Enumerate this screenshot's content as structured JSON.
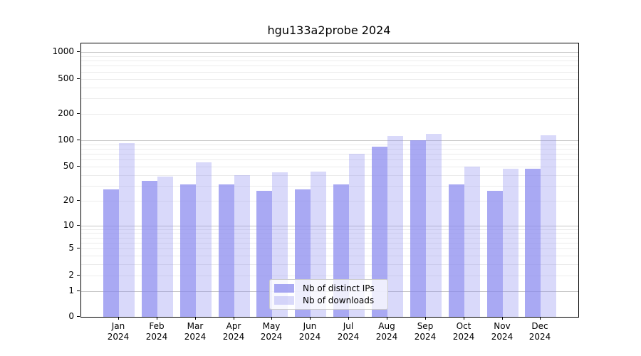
{
  "title": "hgu133a2probe 2024",
  "colors": {
    "bar_base": "#8888ee",
    "ips_fill": "rgba(136,136,238,0.72)",
    "downloads_fill": "rgba(136,136,238,0.32)",
    "grid_major": "#c6c6c6",
    "grid_minor": "#ececec",
    "axis": "#000000",
    "legend_border": "#cccccc",
    "legend_bg": "rgba(255,255,255,0.8)",
    "text": "#000000"
  },
  "chart_data": {
    "type": "bar",
    "title": "hgu133a2probe 2024",
    "categories": [
      "Jan",
      "Feb",
      "Mar",
      "Apr",
      "May",
      "Jun",
      "Jul",
      "Aug",
      "Sep",
      "Oct",
      "Nov",
      "Dec"
    ],
    "year": "2024",
    "series": [
      {
        "name": "Nb of distinct IPs",
        "values": [
          27,
          34,
          31,
          31,
          26,
          27,
          31,
          85,
          100,
          31,
          26,
          47
        ]
      },
      {
        "name": "Nb of downloads",
        "values": [
          92,
          38,
          56,
          40,
          43,
          44,
          70,
          112,
          119,
          50,
          47,
          114
        ]
      }
    ],
    "xlabel": "",
    "ylabel": "",
    "y_scale": "log10(value+1)",
    "y_ticks": [
      0,
      1,
      2,
      5,
      10,
      20,
      50,
      100,
      200,
      500,
      1000
    ],
    "y_major_gridlines": [
      1,
      10,
      100,
      1000
    ],
    "ylim": [
      0,
      1250
    ],
    "grid": true,
    "legend_position": "lower center inside plot"
  }
}
